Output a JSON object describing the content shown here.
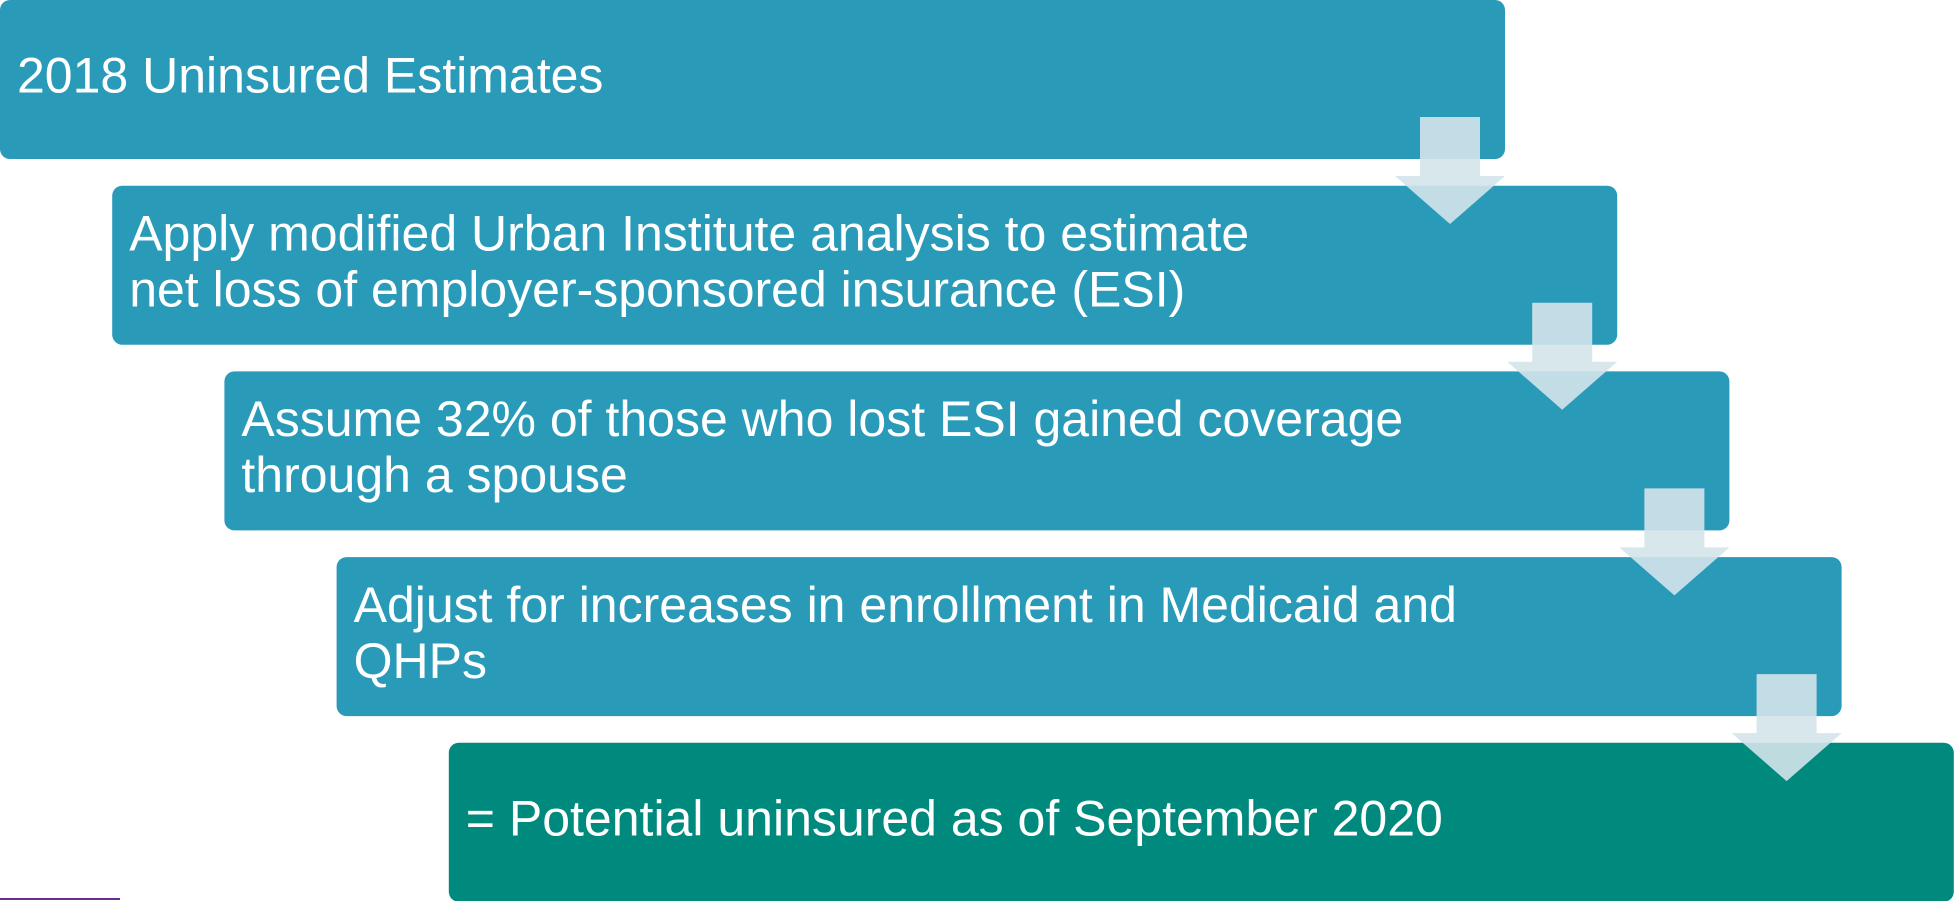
{
  "steps": [
    [
      "2018 Uninsured Estimates"
    ],
    [
      "Apply modified Urban Institute analysis to estimate",
      "net loss of employer-sponsored insurance (ESI)"
    ],
    [
      "Assume 32% of those who lost ESI gained coverage",
      "through a spouse"
    ],
    [
      "Adjust for increases in enrollment in Medicaid and",
      "QHPs"
    ],
    [
      "= Potential uninsured as of September 2020"
    ]
  ]
}
